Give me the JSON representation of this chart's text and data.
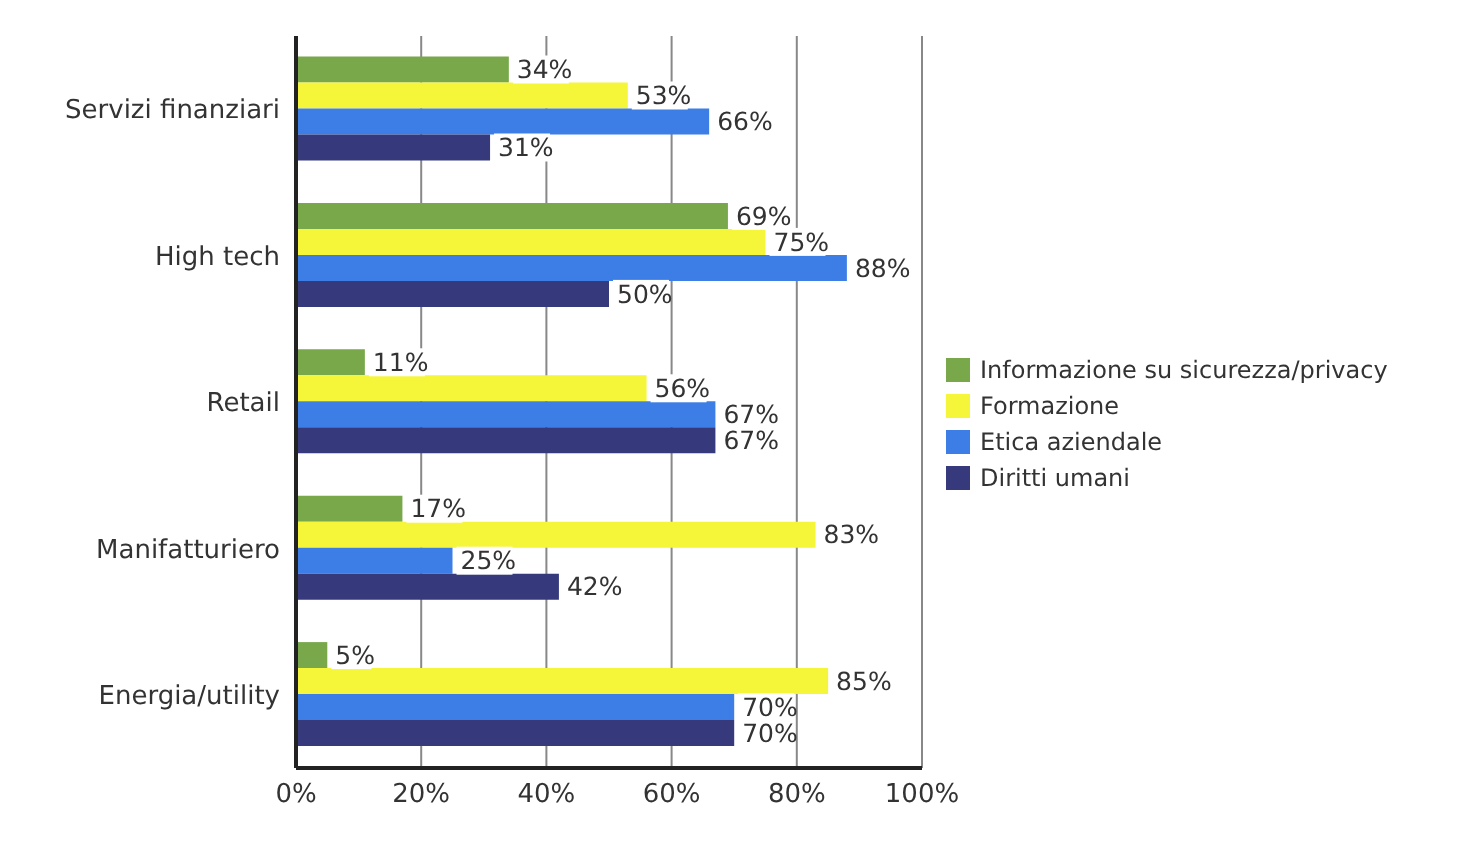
{
  "chart_data": {
    "type": "bar",
    "orientation": "horizontal",
    "categories": [
      "Servizi finanziari",
      "High tech",
      "Retail",
      "Manifatturiero",
      "Energia/utility"
    ],
    "series": [
      {
        "name": "Informazione su sicurezza/privacy",
        "color": "#78a84a",
        "values": [
          34,
          69,
          11,
          17,
          5
        ],
        "value_labels": [
          "34%",
          "69%",
          "11%",
          "17%",
          "5%"
        ]
      },
      {
        "name": "Formazione",
        "color": "#f5f53a",
        "values": [
          53,
          75,
          56,
          83,
          85
        ],
        "value_labels": [
          "53%",
          "75%",
          "56%",
          "83%",
          "85%"
        ]
      },
      {
        "name": "Etica aziendale",
        "color": "#3d7ee6",
        "values": [
          66,
          88,
          67,
          25,
          70
        ],
        "value_labels": [
          "66%",
          "88%",
          "67%",
          "25%",
          "70%"
        ]
      },
      {
        "name": "Diritti umani",
        "color": "#363a7c",
        "values": [
          31,
          50,
          67,
          42,
          70
        ],
        "value_labels": [
          "31%",
          "50%",
          "67%",
          "42%",
          "70%"
        ]
      }
    ],
    "xlim": [
      0,
      100
    ],
    "xticks": [
      {
        "value": 0,
        "label": "0%"
      },
      {
        "value": 20,
        "label": "20%"
      },
      {
        "value": 40,
        "label": "40%"
      },
      {
        "value": 60,
        "label": "60%"
      },
      {
        "value": 80,
        "label": "80%"
      },
      {
        "value": 100,
        "label": "100%"
      }
    ],
    "grid": "x",
    "legend": "right"
  }
}
